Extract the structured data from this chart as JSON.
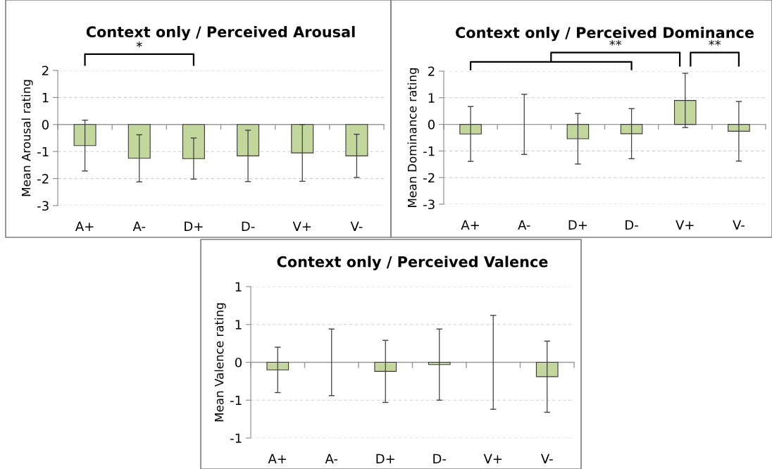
{
  "chart_data": [
    {
      "type": "bar",
      "title": "Context only / Perceived Arousal",
      "ylabel": "Mean Arousal rating",
      "categories": [
        "A+",
        "A-",
        "D+",
        "D-",
        "V+",
        "V-"
      ],
      "values": [
        -0.78,
        -1.25,
        -1.26,
        -1.16,
        -1.05,
        -1.16
      ],
      "errors": [
        0.94,
        0.87,
        0.76,
        0.95,
        1.05,
        0.8
      ],
      "color": "#c3d69b",
      "ylim": [
        -3,
        2
      ],
      "yticks": [
        -3,
        -2,
        -1,
        0,
        1,
        2
      ],
      "grid": "y",
      "annotations": [
        "*"
      ]
    },
    {
      "type": "bar",
      "title": "Context only / Perceived Dominance",
      "ylabel": "Mean Dominance rating",
      "categories": [
        "A+",
        "A-",
        "D+",
        "D-",
        "V+",
        "V-"
      ],
      "values": [
        -0.36,
        0,
        -0.54,
        -0.35,
        0.9,
        -0.26
      ],
      "errors": [
        1.03,
        1.13,
        0.95,
        0.94,
        1.02,
        1.12
      ],
      "color": "#c3d69b",
      "ylim": [
        -3,
        2
      ],
      "yticks": [
        -3,
        -2,
        -1,
        0,
        1,
        2
      ],
      "grid": "y",
      "annotations": [
        "**",
        "**"
      ]
    },
    {
      "type": "bar",
      "title": "Context only / Perceived Valence",
      "ylabel": "Mean Valence rating",
      "categories": [
        "A+",
        "A-",
        "D+",
        "D-",
        "V+",
        "V-"
      ],
      "values": [
        -0.1,
        0,
        -0.12,
        -0.03,
        0,
        -0.19
      ],
      "errors": [
        0.3,
        0.44,
        0.41,
        0.47,
        0.62,
        0.47
      ],
      "color": "#c3d69b",
      "ylim": [
        -1,
        1
      ],
      "yticks": [
        {
          "value": -1,
          "label": "-1"
        },
        {
          "value": -0.5,
          "label": "-1"
        },
        0,
        {
          "value": 0.5,
          "label": "1"
        },
        1
      ],
      "grid": "y"
    }
  ]
}
